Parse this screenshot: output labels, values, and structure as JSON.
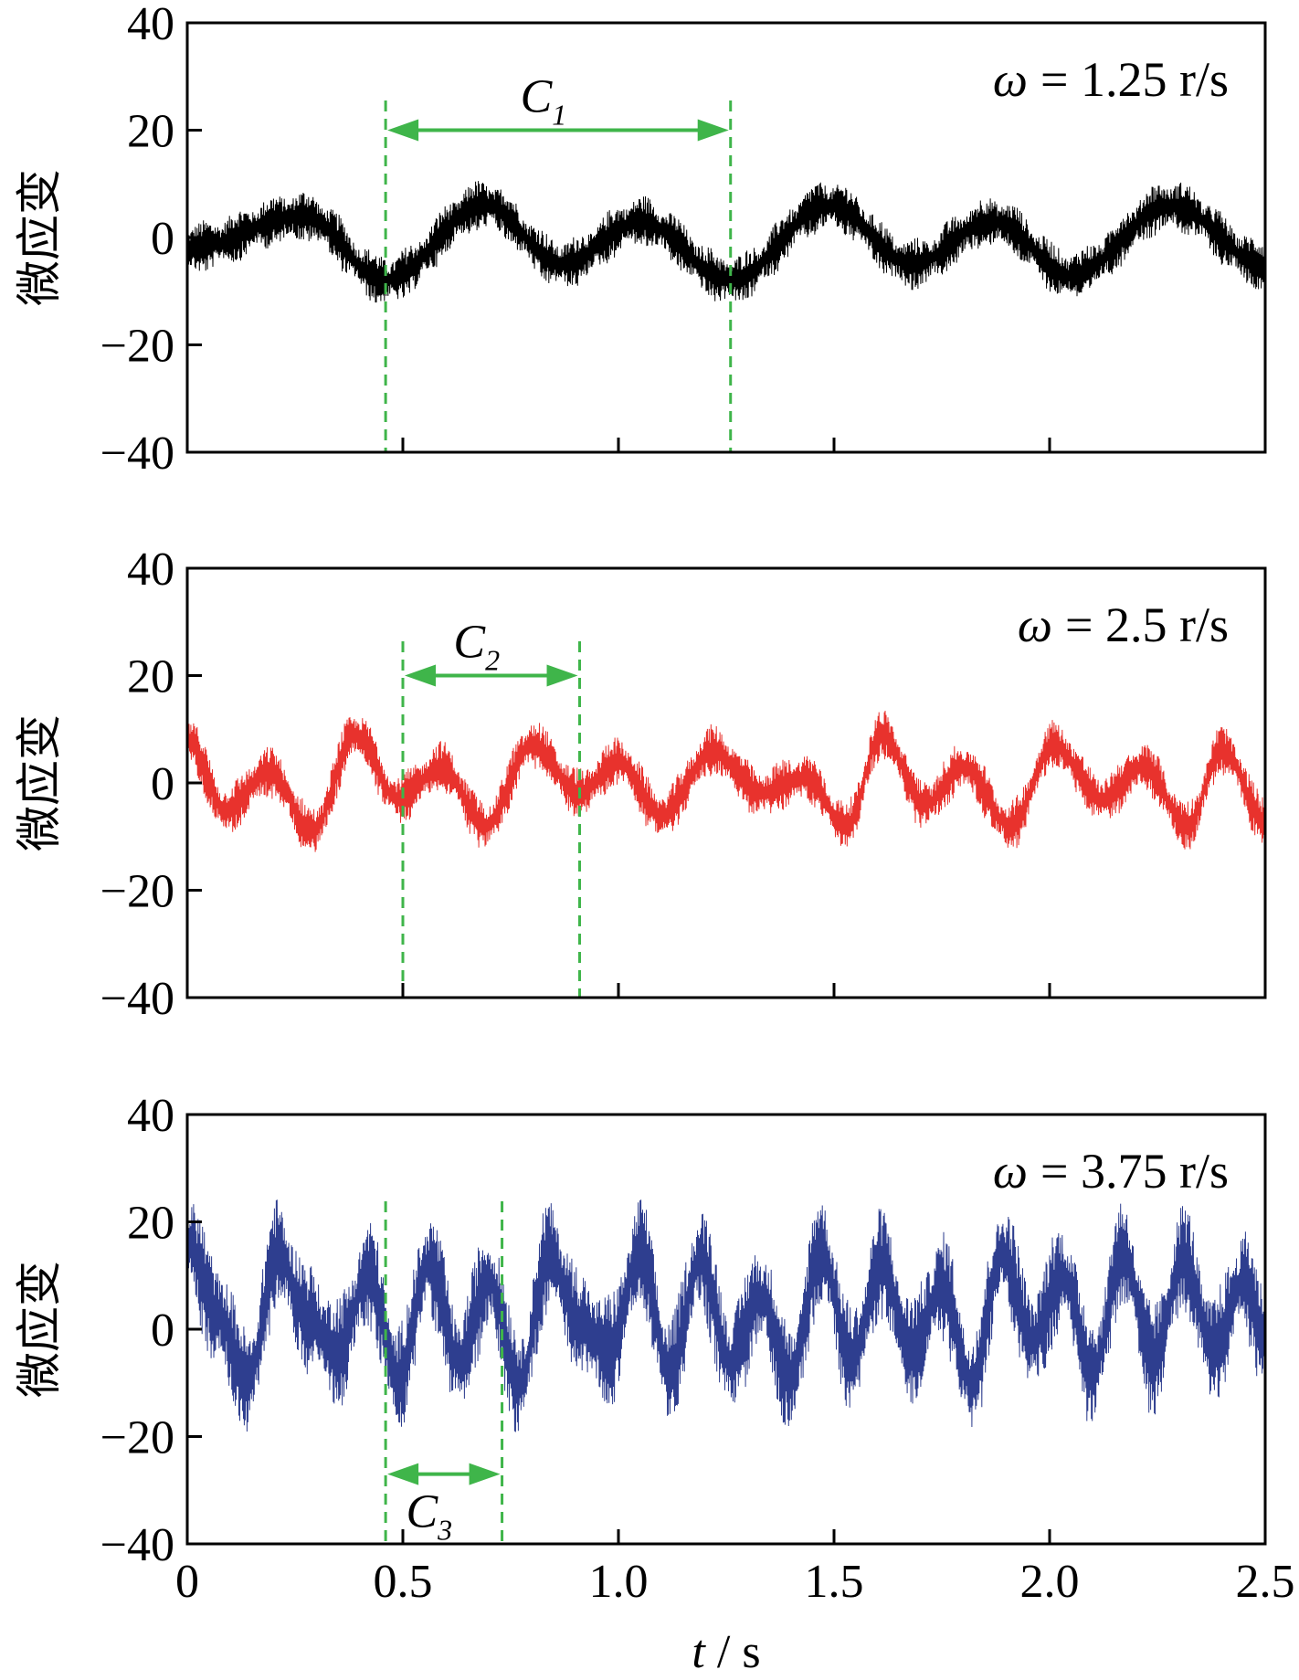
{
  "colors": {
    "series": [
      "#000000",
      "#e8322d",
      "#2e3e8f"
    ],
    "marker": "#3fb54a",
    "axis": "#000000"
  },
  "x_axis": {
    "label_italic": "t",
    "label_rest": " / s",
    "tick_labels": [
      "0",
      "0.5",
      "1.0",
      "1.5",
      "2.0",
      "2.5"
    ]
  },
  "chart_data": [
    {
      "type": "line",
      "ylabel": "微应变",
      "xlim": [
        0,
        2.5
      ],
      "ylim": [
        -40,
        40
      ],
      "yticks": [
        40,
        20,
        0,
        -20,
        -40
      ],
      "ytick_labels": [
        "40",
        "20",
        "0",
        "−20",
        "−40"
      ],
      "xticks": [
        0,
        0.5,
        1.0,
        1.5,
        2.0,
        2.5
      ],
      "grid": false,
      "series": [
        {
          "x": [
            0,
            0.27,
            0.46,
            0.69,
            0.87,
            1.05,
            1.26,
            1.49,
            1.68,
            1.87,
            2.05,
            2.28,
            2.5
          ],
          "y": [
            -2,
            4,
            -8,
            6,
            -5,
            3,
            -8,
            6,
            -5,
            3,
            -7,
            6,
            -5
          ],
          "noise_amplitude": 5,
          "color": "#000000"
        }
      ],
      "annotation": {
        "omega_symbol": "ω",
        "omega_value": "= 1.25 r/s"
      },
      "period_marker": {
        "label": "C",
        "subscript": "1",
        "x_start": 0.46,
        "x_end": 1.26,
        "y_level": 20
      }
    },
    {
      "type": "line",
      "ylabel": "微应变",
      "xlim": [
        0,
        2.5
      ],
      "ylim": [
        -40,
        40
      ],
      "yticks": [
        40,
        20,
        0,
        -20,
        -40
      ],
      "ytick_labels": [
        "40",
        "20",
        "0",
        "−20",
        "−40"
      ],
      "xticks": [
        0,
        0.5,
        1.0,
        1.5,
        2.0,
        2.5
      ],
      "grid": false,
      "series": [
        {
          "x": [
            0,
            0.09,
            0.19,
            0.29,
            0.39,
            0.49,
            0.59,
            0.69,
            0.8,
            0.91,
            1.0,
            1.1,
            1.22,
            1.33,
            1.43,
            1.53,
            1.61,
            1.71,
            1.8,
            1.91,
            2.01,
            2.12,
            2.22,
            2.32,
            2.4,
            2.5
          ],
          "y": [
            8,
            -5,
            2,
            -9,
            9,
            -3,
            3,
            -8,
            7,
            -2,
            4,
            -6,
            6,
            -2,
            1,
            -8,
            9,
            -4,
            3,
            -8,
            7,
            -3,
            3,
            -8,
            6,
            -7
          ],
          "noise_amplitude": 5,
          "color": "#e8322d"
        }
      ],
      "annotation": {
        "omega_symbol": "ω",
        "omega_value": "= 2.5 r/s"
      },
      "period_marker": {
        "label": "C",
        "subscript": "2",
        "x_start": 0.5,
        "x_end": 0.91,
        "y_level": 20
      }
    },
    {
      "type": "line",
      "ylabel": "微应变",
      "xlim": [
        0,
        2.5
      ],
      "ylim": [
        -40,
        40
      ],
      "yticks": [
        40,
        20,
        0,
        -20,
        -40
      ],
      "ytick_labels": [
        "40",
        "20",
        "0",
        "−20",
        "−40"
      ],
      "xticks": [
        0,
        0.5,
        1.0,
        1.5,
        2.0,
        2.5
      ],
      "grid": false,
      "series": [
        {
          "x": [
            0,
            0.07,
            0.14,
            0.21,
            0.28,
            0.35,
            0.42,
            0.49,
            0.56,
            0.63,
            0.7,
            0.77,
            0.84,
            0.91,
            0.98,
            1.05,
            1.12,
            1.19,
            1.26,
            1.33,
            1.4,
            1.47,
            1.54,
            1.61,
            1.68,
            1.75,
            1.82,
            1.89,
            1.96,
            2.03,
            2.1,
            2.17,
            2.24,
            2.31,
            2.38,
            2.45,
            2.5
          ],
          "y": [
            16,
            3,
            -10,
            14,
            2,
            -4,
            10,
            -9,
            12,
            -6,
            9,
            -10,
            14,
            1,
            -4,
            14,
            -8,
            13,
            -6,
            6,
            -9,
            15,
            -6,
            12,
            -4,
            8,
            -10,
            14,
            -2,
            10,
            -8,
            14,
            -6,
            13,
            -4,
            9,
            -2
          ],
          "noise_amplitude": 11,
          "color": "#2e3e8f"
        }
      ],
      "annotation": {
        "omega_symbol": "ω",
        "omega_value": "= 3.75 r/s"
      },
      "period_marker": {
        "label": "C",
        "subscript": "3",
        "x_start": 0.46,
        "x_end": 0.73,
        "y_level": -27
      }
    }
  ]
}
